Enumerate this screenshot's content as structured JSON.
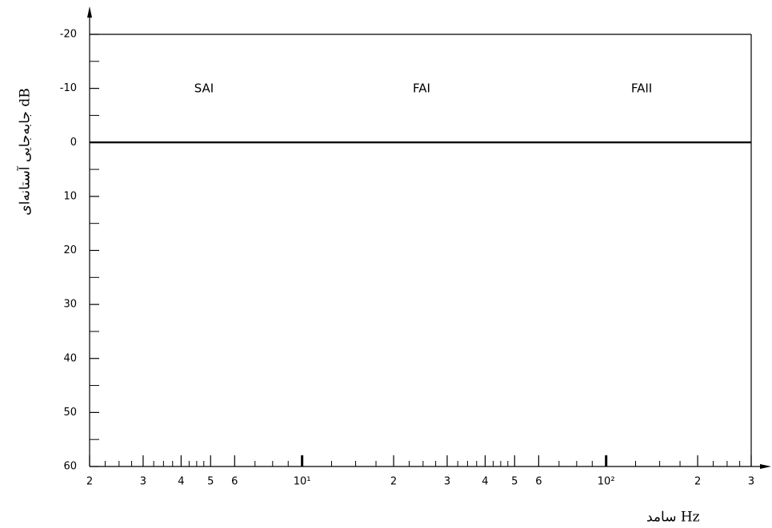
{
  "chart_data": {
    "type": "line",
    "y_label": "جابه‌جایی آستانه‌ای dB",
    "x_label": "سامد Hz",
    "annotations": [
      "SAI",
      "FAI",
      "FAII"
    ],
    "series": [],
    "xscale": "log",
    "xlim": [
      2,
      300
    ],
    "xticks": [
      2,
      3,
      4,
      5,
      6,
      {
        "value": 10,
        "label": "10¹"
      },
      {
        "value": 20,
        "label": "2"
      },
      {
        "value": 30,
        "label": "3"
      },
      {
        "value": 40,
        "label": "4"
      },
      {
        "value": 50,
        "label": "5"
      },
      {
        "value": 60,
        "label": "6"
      },
      {
        "value": 100,
        "label": "10²"
      },
      {
        "value": 200,
        "label": "2"
      },
      {
        "value": 300,
        "label": "3"
      }
    ],
    "xminor": [
      2.25,
      2.5,
      2.75,
      3.25,
      3.5,
      3.75,
      4.25,
      4.5,
      4.75,
      7,
      8,
      9,
      12.5,
      15,
      17.5,
      22.5,
      25,
      27.5,
      32.5,
      35,
      37.5,
      42.5,
      45,
      47.5,
      70,
      80,
      90,
      125,
      150,
      175,
      225,
      250,
      275
    ],
    "ylim": [
      60,
      -20
    ],
    "yticks": [
      -20,
      -10,
      0,
      10,
      20,
      30,
      40,
      50,
      60
    ],
    "yminor": [
      -15,
      -5,
      5,
      15,
      25,
      35,
      45,
      55
    ],
    "hline": 0,
    "color": "#000000"
  }
}
